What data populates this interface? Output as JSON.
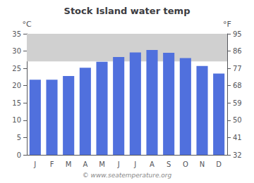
{
  "chart_data": {
    "type": "bar",
    "title": "Stock Island water temp",
    "categories": [
      "J",
      "F",
      "M",
      "A",
      "M",
      "J",
      "J",
      "A",
      "S",
      "O",
      "N",
      "D"
    ],
    "values": [
      21.7,
      21.7,
      22.8,
      25.2,
      26.9,
      28.3,
      29.6,
      30.3,
      29.5,
      28.0,
      25.7,
      23.5
    ],
    "ylabel": "°C",
    "ylim": [
      0,
      35
    ],
    "yticks": [
      0,
      5,
      10,
      15,
      20,
      25,
      30,
      35
    ],
    "y2label": "°F",
    "y2lim": [
      32,
      95
    ],
    "y2ticks": [
      32,
      41,
      50,
      59,
      68,
      77,
      86,
      95
    ],
    "band": {
      "values": [
        27.0,
        35
      ],
      "color": "#d0d0d0"
    },
    "annotations": [
      "© www.seatemperature.org"
    ],
    "grid": false
  }
}
